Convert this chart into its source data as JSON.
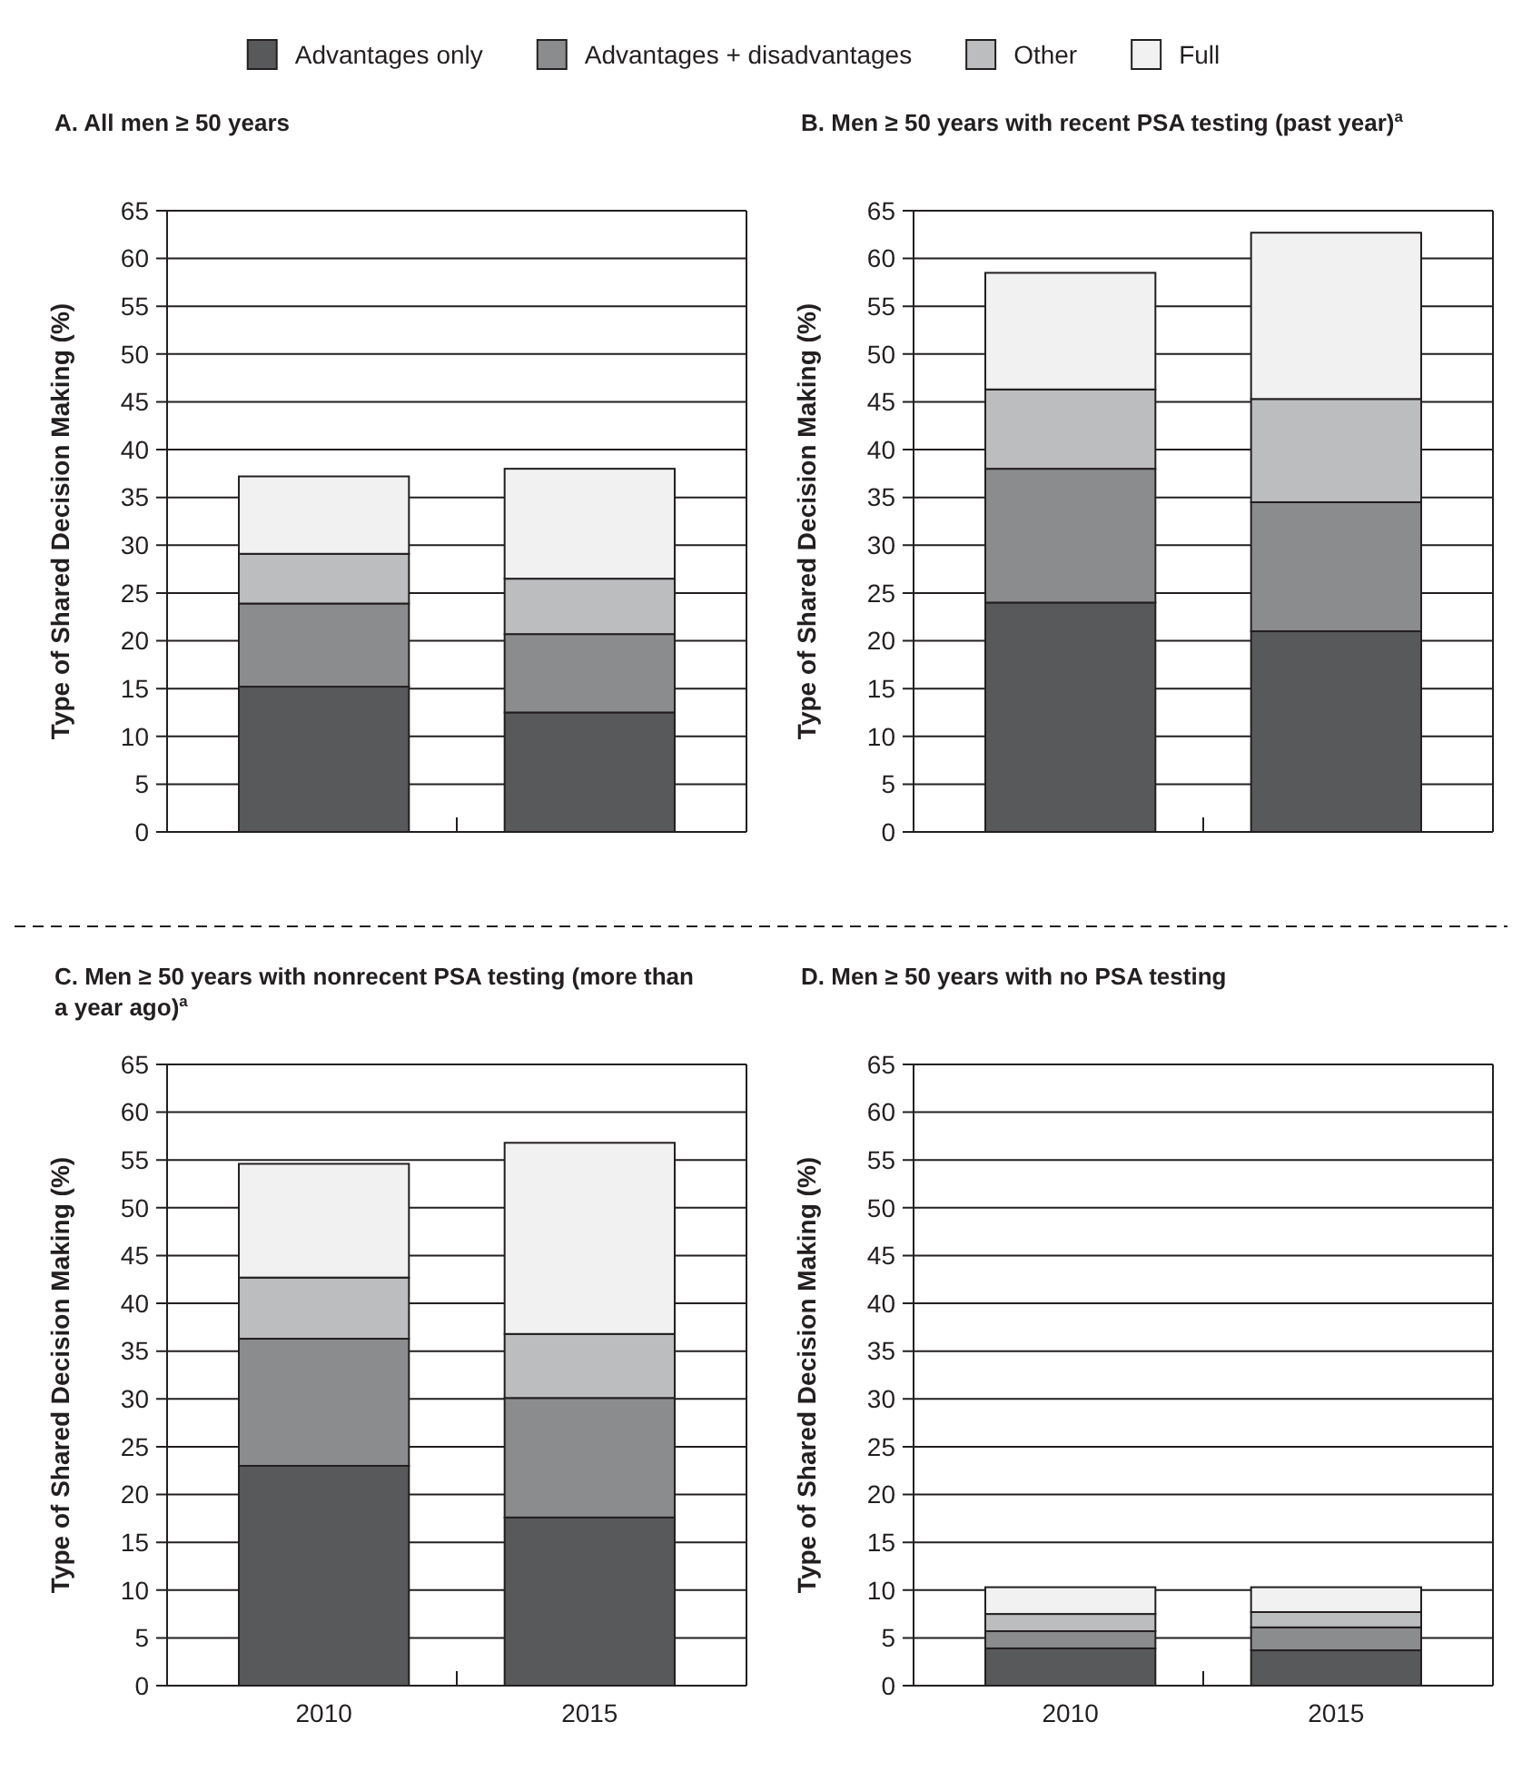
{
  "chart_data": [
    {
      "type": "bar",
      "stacked": true,
      "title": "A. All men ≥ 50 years",
      "ylabel": "Type of Shared Decision Making (%)",
      "categories": [
        "2010",
        "2015"
      ],
      "tick_labels": "y",
      "ylim": [
        0,
        65
      ],
      "yticks": [
        0,
        5,
        10,
        15,
        20,
        25,
        30,
        35,
        40,
        45,
        50,
        55,
        60,
        65
      ],
      "grid": "y",
      "legend": "top",
      "series": [
        {
          "name": "Advantages only",
          "color": "#58595b",
          "values": [
            15.2,
            12.5
          ]
        },
        {
          "name": "Advantages + disadvantages",
          "color": "#8b8c8e",
          "values": [
            8.7,
            8.2
          ]
        },
        {
          "name": "Other",
          "color": "#bcbdbf",
          "values": [
            5.2,
            5.8
          ]
        },
        {
          "name": "Full",
          "color": "#f1f1f1",
          "values": [
            8.1,
            11.5
          ]
        }
      ]
    },
    {
      "type": "bar",
      "stacked": true,
      "title": "B. Men ≥ 50 years with recent PSA testing (past year)$^{a}$",
      "ylabel": "Type of Shared Decision Making (%)",
      "categories": [
        "2010",
        "2015"
      ],
      "tick_labels": "y",
      "ylim": [
        0,
        65
      ],
      "yticks": [
        0,
        5,
        10,
        15,
        20,
        25,
        30,
        35,
        40,
        45,
        50,
        55,
        60,
        65
      ],
      "grid": "y",
      "series": [
        {
          "color": "#58595b",
          "values": [
            24,
            21
          ]
        },
        {
          "color": "#8b8c8e",
          "values": [
            14,
            13.5
          ]
        },
        {
          "color": "#bcbdbf",
          "values": [
            8.3,
            10.8
          ]
        },
        {
          "color": "#f1f1f1",
          "values": [
            12.2,
            17.4
          ]
        }
      ]
    },
    {
      "type": "bar",
      "stacked": true,
      "title": "C. Men ≥ 50 years with nonrecent PSA testing (more than a year ago)$^{a}$",
      "ylabel": "Type of Shared Decision Making (%)",
      "categories": [
        "2010",
        "2015"
      ],
      "ylim": [
        0,
        65
      ],
      "yticks": [
        0,
        5,
        10,
        15,
        20,
        25,
        30,
        35,
        40,
        45,
        50,
        55,
        60,
        65
      ],
      "grid": "y",
      "series": [
        {
          "color": "#58595b",
          "values": [
            23,
            17.6
          ]
        },
        {
          "color": "#8b8c8e",
          "values": [
            13.3,
            12.5
          ]
        },
        {
          "color": "#bcbdbf",
          "values": [
            6.4,
            6.7
          ]
        },
        {
          "color": "#f1f1f1",
          "values": [
            11.9,
            20
          ]
        }
      ]
    },
    {
      "type": "bar",
      "stacked": true,
      "title": "D. Men ≥ 50 years with no PSA testing",
      "ylabel": "Type of Shared Decision Making (%)",
      "categories": [
        "2010",
        "2015"
      ],
      "ylim": [
        0,
        65
      ],
      "yticks": [
        0,
        5,
        10,
        15,
        20,
        25,
        30,
        35,
        40,
        45,
        50,
        55,
        60,
        65
      ],
      "grid": "y",
      "series": [
        {
          "color": "#58595b",
          "values": [
            3.9,
            3.7
          ]
        },
        {
          "color": "#8b8c8e",
          "values": [
            1.8,
            2.4
          ]
        },
        {
          "color": "#bcbdbf",
          "values": [
            1.8,
            1.6
          ]
        },
        {
          "color": "#f1f1f1",
          "values": [
            2.8,
            2.6
          ]
        }
      ]
    }
  ]
}
